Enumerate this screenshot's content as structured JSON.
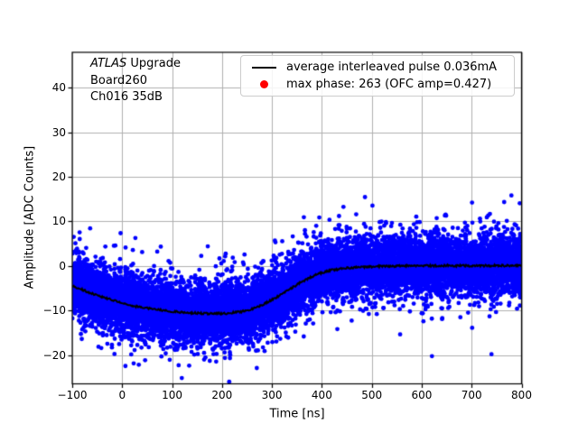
{
  "figure": {
    "background": "#ffffff",
    "annotation": {
      "line1_italic": "ATLAS",
      "line1_rest": " Upgrade",
      "line2": "Board260",
      "line3": "Ch016 35dB"
    },
    "legend": {
      "position": "upper right",
      "items": [
        {
          "marker": "line",
          "color": "#000000",
          "label": "average interleaved pulse 0.036mA"
        },
        {
          "marker": "dot",
          "color": "#ff0000",
          "label": "max phase: 263 (OFC amp=0.427)"
        }
      ]
    }
  },
  "chart_data": {
    "type": "scatter",
    "title": "",
    "xlabel": "Time [ns]",
    "ylabel": "Amplitude [ADC Counts]",
    "xlim": [
      -100,
      800
    ],
    "ylim": [
      -26.4,
      47.9
    ],
    "x_ticks": [
      -100,
      0,
      100,
      200,
      300,
      400,
      500,
      600,
      700,
      800
    ],
    "y_ticks": [
      -20,
      -10,
      0,
      10,
      20,
      30,
      40
    ],
    "grid": true,
    "grid_color": "#b0b0b0",
    "series": [
      {
        "name": "interleaved pulse samples",
        "kind": "scatter",
        "color": "#0000ff",
        "marker_radius": 2.4,
        "n_points": 14000,
        "noise_std": 3.0,
        "outlier_std": 4.8,
        "outlier_frac": 0.15,
        "far_outlier_std": 6.5,
        "far_outlier_frac": 0.03
      },
      {
        "name": "average interleaved pulse",
        "kind": "line",
        "color": "#000000",
        "width": 2,
        "t": [
          -100,
          -60,
          -20,
          20,
          60,
          100,
          140,
          180,
          210,
          240,
          270,
          300,
          330,
          360,
          390,
          420,
          450,
          480,
          510,
          550,
          600,
          650,
          700,
          750,
          800
        ],
        "y": [
          -4.4,
          -6.2,
          -7.6,
          -8.9,
          -9.6,
          -10.2,
          -10.5,
          -10.7,
          -10.6,
          -10.2,
          -9.3,
          -7.6,
          -5.6,
          -3.5,
          -1.8,
          -0.9,
          -0.45,
          -0.25,
          -0.1,
          0.0,
          0.05,
          0.1,
          0.05,
          0.1,
          0.1
        ]
      }
    ]
  }
}
